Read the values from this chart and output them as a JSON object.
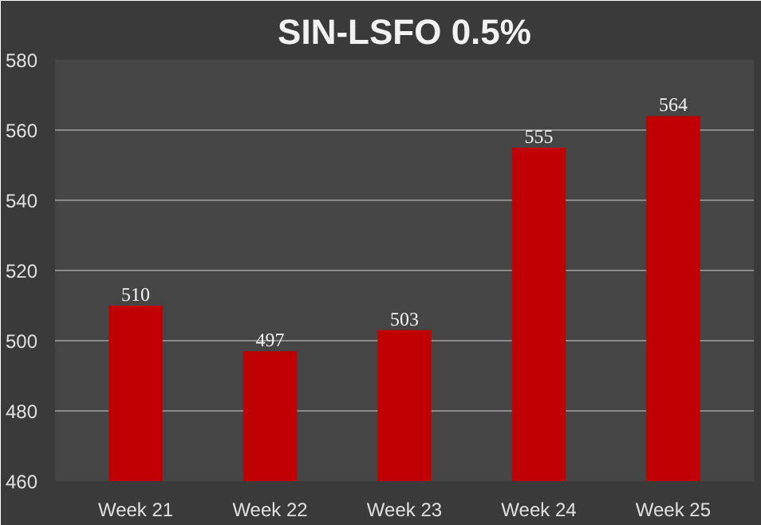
{
  "chart_data": {
    "type": "bar",
    "title": "SIN-LSFO 0.5%",
    "categories": [
      "Week 21",
      "Week 22",
      "Week 23",
      "Week 24",
      "Week 25"
    ],
    "values": [
      510,
      497,
      503,
      555,
      564
    ],
    "color": "#c00000",
    "ylim": [
      460,
      580
    ],
    "yticks": [
      460,
      480,
      500,
      520,
      540,
      560,
      580
    ],
    "grid": "y",
    "data_labels": true
  }
}
